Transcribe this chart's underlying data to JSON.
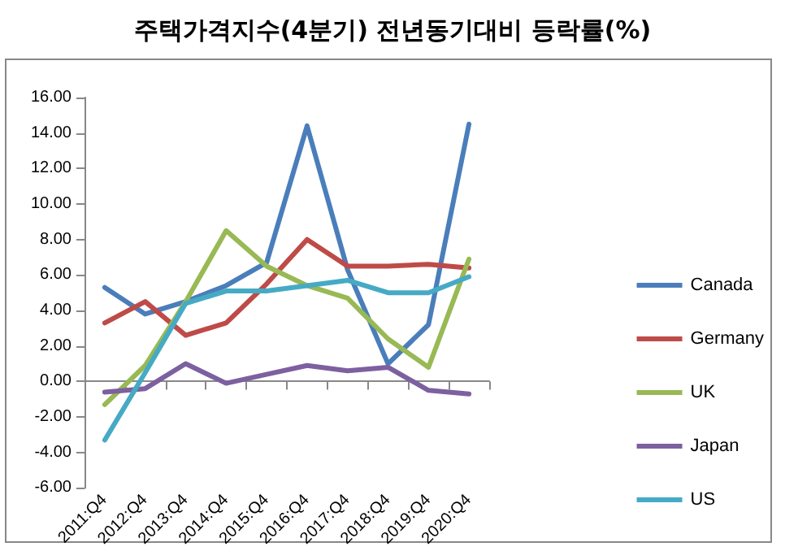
{
  "chart_data": {
    "type": "line",
    "title": "주택가격지수(4분기) 전년동기대비 등락률(%)",
    "categories": [
      "2011:Q4",
      "2012:Q4",
      "2013:Q4",
      "2014:Q4",
      "2015:Q4",
      "2016:Q4",
      "2017:Q4",
      "2018:Q4",
      "2019:Q4",
      "2020:Q4"
    ],
    "series": [
      {
        "name": "Canada",
        "color": "#4a7ebb",
        "values": [
          5.3,
          3.8,
          4.5,
          5.4,
          6.7,
          14.4,
          6.3,
          1.0,
          3.2,
          14.5
        ]
      },
      {
        "name": "Germany",
        "color": "#be4b48",
        "values": [
          3.3,
          4.5,
          2.6,
          3.3,
          5.5,
          8.0,
          6.5,
          6.5,
          6.6,
          6.4
        ]
      },
      {
        "name": "UK",
        "color": "#98b954",
        "values": [
          -1.3,
          0.9,
          4.5,
          8.5,
          6.5,
          5.4,
          4.7,
          2.4,
          0.8,
          6.9
        ]
      },
      {
        "name": "Japan",
        "color": "#7d60a0",
        "values": [
          -0.6,
          -0.4,
          1.0,
          -0.1,
          0.4,
          0.9,
          0.6,
          0.8,
          -0.5,
          -0.7
        ]
      },
      {
        "name": "US",
        "color": "#46aac5",
        "values": [
          -3.3,
          0.5,
          4.4,
          5.1,
          5.1,
          5.4,
          5.7,
          5.0,
          5.0,
          5.9
        ]
      }
    ],
    "ylim": [
      -6,
      16
    ],
    "yticks": [
      {
        "value": -6,
        "label": "-6.00"
      },
      {
        "value": -4,
        "label": "-4.00"
      },
      {
        "value": -2,
        "label": "-2.00"
      },
      {
        "value": 0,
        "label": "0.00"
      },
      {
        "value": 2,
        "label": "2.00"
      },
      {
        "value": 4,
        "label": "4.00"
      },
      {
        "value": 6,
        "label": "6.00"
      },
      {
        "value": 8,
        "label": "8.00"
      },
      {
        "value": 10,
        "label": "10.00"
      },
      {
        "value": 12,
        "label": "12.00"
      },
      {
        "value": 14,
        "label": "14.00"
      },
      {
        "value": 16,
        "label": "16.00"
      }
    ],
    "legend": "right",
    "marker": "none",
    "line_style": "solid"
  }
}
